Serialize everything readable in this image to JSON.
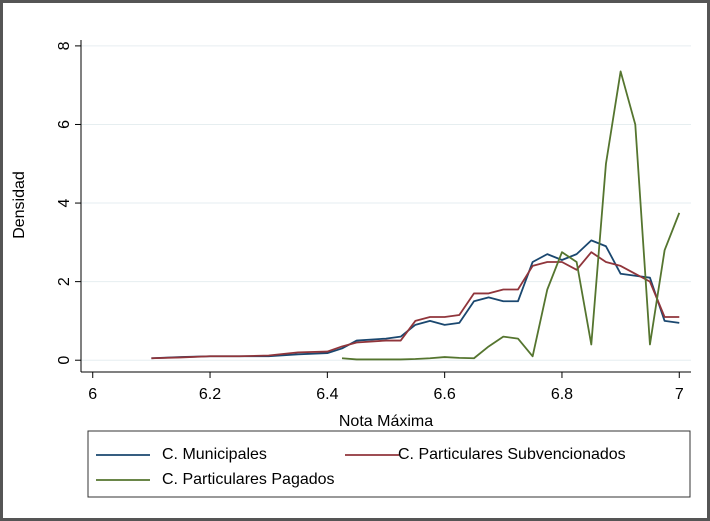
{
  "chart_data": {
    "type": "line",
    "xlabel": "Nota Máxima",
    "ylabel": "Densidad",
    "x": [
      6.1,
      6.15,
      6.2,
      6.25,
      6.3,
      6.35,
      6.4,
      6.425,
      6.45,
      6.5,
      6.525,
      6.55,
      6.575,
      6.6,
      6.625,
      6.65,
      6.675,
      6.7,
      6.725,
      6.75,
      6.775,
      6.8,
      6.825,
      6.85,
      6.875,
      6.9,
      6.925,
      6.95,
      6.975,
      7
    ],
    "series": [
      {
        "name": "C. Municipales",
        "color": "#1a476f",
        "values": [
          0.05,
          0.08,
          0.1,
          0.1,
          0.1,
          0.15,
          0.18,
          0.3,
          0.5,
          0.55,
          0.6,
          0.9,
          1.0,
          0.9,
          0.95,
          1.5,
          1.6,
          1.5,
          1.5,
          2.5,
          2.7,
          2.55,
          2.7,
          3.05,
          2.9,
          2.2,
          2.15,
          2.1,
          1.0,
          0.95
        ]
      },
      {
        "name": "C. Particulares Subvencionados",
        "color": "#90353b",
        "values": [
          0.05,
          0.07,
          0.1,
          0.1,
          0.12,
          0.2,
          0.22,
          0.35,
          0.45,
          0.5,
          0.5,
          1.0,
          1.1,
          1.1,
          1.15,
          1.7,
          1.7,
          1.8,
          1.8,
          2.4,
          2.5,
          2.5,
          2.3,
          2.75,
          2.5,
          2.4,
          2.2,
          2.0,
          1.1,
          1.1
        ]
      },
      {
        "name": "C. Particulares Pagados",
        "color": "#55752f",
        "values": [
          null,
          null,
          null,
          null,
          null,
          null,
          null,
          0.05,
          0.02,
          0.02,
          0.02,
          0.03,
          0.05,
          0.08,
          0.06,
          0.05,
          0.35,
          0.6,
          0.55,
          0.1,
          1.8,
          2.75,
          2.5,
          0.4,
          5.0,
          7.35,
          6.0,
          0.4,
          2.8,
          3.75
        ]
      }
    ],
    "xlim": [
      5.98,
      7.02
    ],
    "ylim": [
      -0.3,
      8.15
    ],
    "xticks": [
      6,
      6.2,
      6.4,
      6.6,
      6.8,
      7
    ],
    "yticks": [
      0,
      2,
      4,
      6,
      8
    ],
    "grid": true
  }
}
